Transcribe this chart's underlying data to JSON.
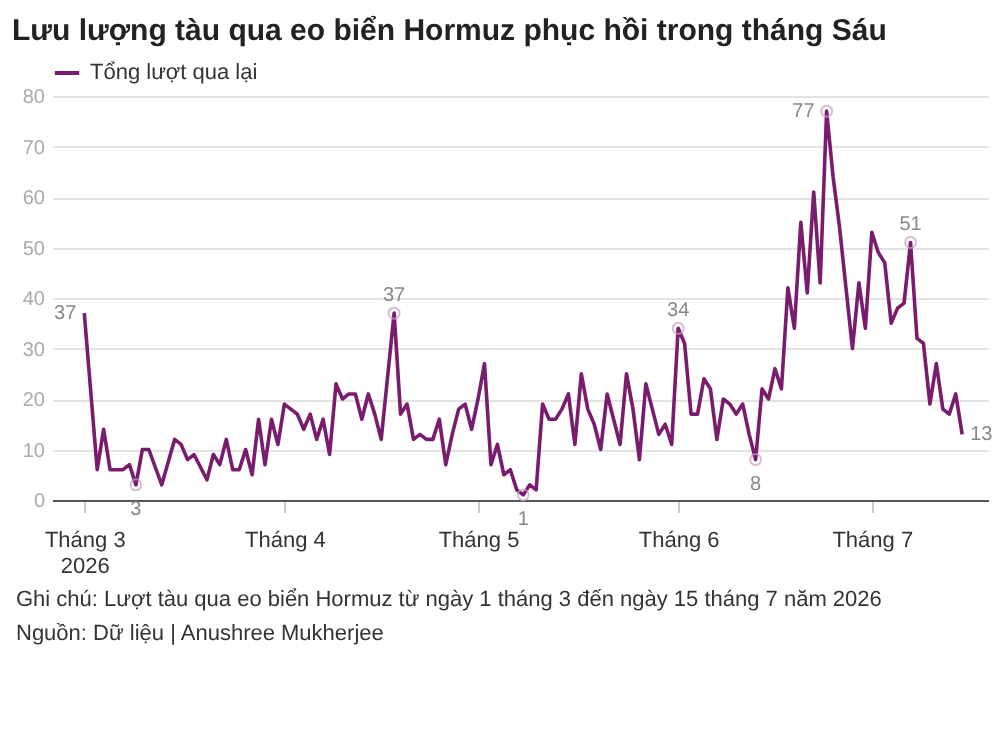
{
  "chart_data": {
    "type": "line",
    "title": "Lưu lượng tàu qua eo biển Hormuz phục hồi trong tháng Sáu",
    "x": [
      "2026-03-01",
      "2026-03-03",
      "2026-03-04",
      "2026-03-05",
      "2026-03-07",
      "2026-03-08",
      "2026-03-09",
      "2026-03-10",
      "2026-03-11",
      "2026-03-13",
      "2026-03-15",
      "2026-03-16",
      "2026-03-17",
      "2026-03-18",
      "2026-03-20",
      "2026-03-21",
      "2026-03-22",
      "2026-03-23",
      "2026-03-24",
      "2026-03-25",
      "2026-03-26",
      "2026-03-27",
      "2026-03-28",
      "2026-03-29",
      "2026-03-30",
      "2026-03-31",
      "2026-04-01",
      "2026-04-03",
      "2026-04-04",
      "2026-04-05",
      "2026-04-06",
      "2026-04-07",
      "2026-04-08",
      "2026-04-09",
      "2026-04-10",
      "2026-04-11",
      "2026-04-12",
      "2026-04-13",
      "2026-04-14",
      "2026-04-15",
      "2026-04-16",
      "2026-04-18",
      "2026-04-19",
      "2026-04-20",
      "2026-04-21",
      "2026-04-22",
      "2026-04-23",
      "2026-04-24",
      "2026-04-25",
      "2026-04-26",
      "2026-04-27",
      "2026-04-28",
      "2026-04-29",
      "2026-04-30",
      "2026-05-01",
      "2026-05-02",
      "2026-05-03",
      "2026-05-04",
      "2026-05-05",
      "2026-05-06",
      "2026-05-07",
      "2026-05-08",
      "2026-05-09",
      "2026-05-10",
      "2026-05-11",
      "2026-05-12",
      "2026-05-13",
      "2026-05-14",
      "2026-05-15",
      "2026-05-16",
      "2026-05-17",
      "2026-05-18",
      "2026-05-19",
      "2026-05-20",
      "2026-05-21",
      "2026-05-22",
      "2026-05-23",
      "2026-05-24",
      "2026-05-25",
      "2026-05-26",
      "2026-05-27",
      "2026-05-28",
      "2026-05-29",
      "2026-05-30",
      "2026-05-31",
      "2026-06-01",
      "2026-06-02",
      "2026-06-03",
      "2026-06-04",
      "2026-06-05",
      "2026-06-06",
      "2026-06-07",
      "2026-06-08",
      "2026-06-09",
      "2026-06-10",
      "2026-06-11",
      "2026-06-12",
      "2026-06-13",
      "2026-06-14",
      "2026-06-15",
      "2026-06-16",
      "2026-06-17",
      "2026-06-18",
      "2026-06-19",
      "2026-06-20",
      "2026-06-21",
      "2026-06-22",
      "2026-06-23",
      "2026-06-24",
      "2026-06-25",
      "2026-06-26",
      "2026-06-27",
      "2026-06-28",
      "2026-06-29",
      "2026-06-30",
      "2026-07-01",
      "2026-07-02",
      "2026-07-03",
      "2026-07-04",
      "2026-07-05",
      "2026-07-06",
      "2026-07-07",
      "2026-07-08",
      "2026-07-09",
      "2026-07-10",
      "2026-07-11",
      "2026-07-12",
      "2026-07-13",
      "2026-07-14",
      "2026-07-15"
    ],
    "series": [
      {
        "name": "Tổng lượt qua lại",
        "color": "#7a1c6e",
        "values": [
          37,
          6,
          14,
          6,
          6,
          7,
          3,
          10,
          10,
          3,
          12,
          11,
          8,
          9,
          4,
          9,
          7,
          12,
          6,
          6,
          10,
          5,
          16,
          7,
          16,
          11,
          19,
          17,
          14,
          17,
          12,
          16,
          9,
          23,
          20,
          21,
          21,
          16,
          21,
          17,
          12,
          37,
          17,
          19,
          12,
          13,
          12,
          12,
          16,
          7,
          13,
          18,
          19,
          14,
          20,
          27,
          7,
          11,
          5,
          6,
          2,
          1,
          3,
          2,
          19,
          16,
          16,
          18,
          21,
          11,
          25,
          18,
          15,
          10,
          21,
          16,
          11,
          25,
          18,
          8,
          23,
          18,
          13,
          15,
          11,
          34,
          31,
          17,
          17,
          24,
          22,
          12,
          20,
          19,
          17,
          19,
          13,
          8,
          22,
          20,
          26,
          22,
          42,
          34,
          55,
          41,
          61,
          43,
          77,
          64,
          54,
          42,
          30,
          43,
          34,
          53,
          49,
          47,
          35,
          38,
          39,
          51,
          32,
          31,
          19,
          27,
          18,
          17,
          21,
          13
        ]
      }
    ],
    "xlim": [
      "2026-02-24",
      "2026-07-19"
    ],
    "xticks": [
      {
        "value": "2026-03-01",
        "label": "Tháng 3\n2026"
      },
      {
        "value": "2026-04-01",
        "label": "Tháng 4"
      },
      {
        "value": "2026-05-01",
        "label": "Tháng 5"
      },
      {
        "value": "2026-06-01",
        "label": "Tháng 6"
      },
      {
        "value": "2026-07-01",
        "label": "Tháng 7"
      }
    ],
    "ylim": [
      0,
      80
    ],
    "yticks": [
      0,
      10,
      20,
      30,
      40,
      50,
      60,
      70,
      80
    ],
    "grid": "y",
    "legend": "top left",
    "annotations": [
      {
        "text": "37",
        "x": "2026-03-01",
        "y": 37
      },
      {
        "text": "3",
        "x": "2026-03-09",
        "y": 3
      },
      {
        "text": "37",
        "x": "2026-04-18",
        "y": 37
      },
      {
        "text": "1",
        "x": "2026-05-08",
        "y": 1
      },
      {
        "text": "34",
        "x": "2026-06-01",
        "y": 34
      },
      {
        "text": "8",
        "x": "2026-06-13",
        "y": 8
      },
      {
        "text": "77",
        "x": "2026-06-24",
        "y": 77
      },
      {
        "text": "51",
        "x": "2026-07-07",
        "y": 51
      },
      {
        "text": "13",
        "x": "2026-07-15",
        "y": 13
      },
      "Ghi chú: Lượt tàu qua eo biển Hormuz từ ngày 1 tháng 3 đến ngày 15 tháng 7 năm 2026",
      "Nguồn: Dữ liệu | Anushree Mukherjee"
    ]
  }
}
